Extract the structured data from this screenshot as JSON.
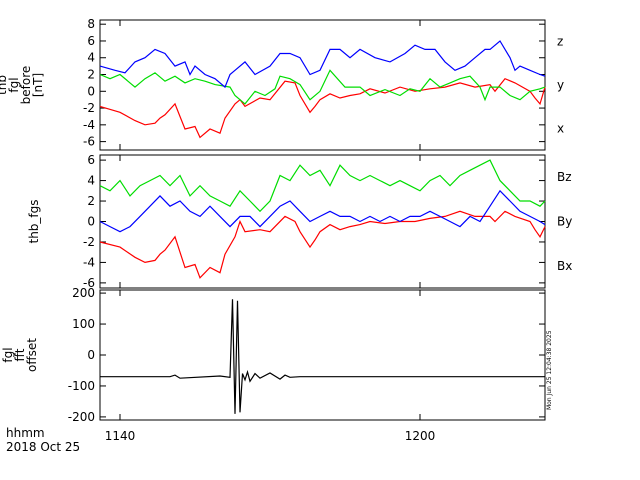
{
  "chart_data": [
    {
      "type": "line",
      "ylabel_lines": [
        "thb",
        "fgl",
        "before",
        "[nT]"
      ],
      "ylim": [
        -7,
        8.5
      ],
      "yticks": [
        -6,
        -4,
        -2,
        0,
        2,
        4,
        6,
        8
      ],
      "xlim": [
        1136,
        1225
      ],
      "legend": "right",
      "series": [
        {
          "name": "z",
          "color": "#ff0000",
          "x": [
            1136,
            1140,
            1143,
            1145,
            1147,
            1148,
            1149,
            1151,
            1152,
            1153,
            1155,
            1156,
            1158,
            1160,
            1161,
            1163,
            1164,
            1165,
            1168,
            1170,
            1173,
            1175,
            1176,
            1178,
            1179,
            1180,
            1182,
            1184,
            1186,
            1188,
            1190,
            1193,
            1196,
            1199,
            1202,
            1205,
            1208,
            1211,
            1214,
            1215,
            1217,
            1219,
            1222,
            1223,
            1224,
            1225
          ],
          "values": [
            -1.8,
            -2.5,
            -3.5,
            -4,
            -3.8,
            -3.2,
            -2.8,
            -1.5,
            -3,
            -4.5,
            -4.2,
            -5.5,
            -4.5,
            -5,
            -3.2,
            -1.5,
            -1,
            -1.8,
            -0.8,
            -1,
            1.2,
            1,
            -0.5,
            -2.5,
            -1.8,
            -1,
            -0.3,
            -0.8,
            -0.5,
            -0.3,
            0.3,
            -0.2,
            0.5,
            0,
            0.3,
            0.5,
            1,
            0.5,
            0.8,
            0,
            1.5,
            1,
            0,
            -0.8,
            -1.5,
            0.5
          ]
        },
        {
          "name": "y",
          "color": "#00dd00",
          "x": [
            1136,
            1138,
            1140,
            1142,
            1143,
            1145,
            1147,
            1149,
            1151,
            1153,
            1155,
            1157,
            1159,
            1162,
            1163,
            1165,
            1167,
            1169,
            1171,
            1172,
            1174,
            1176,
            1178,
            1180,
            1182,
            1185,
            1188,
            1190,
            1193,
            1196,
            1198,
            1200,
            1202,
            1204,
            1206,
            1208,
            1210,
            1212,
            1213,
            1214,
            1216,
            1218,
            1220,
            1222,
            1224,
            1225
          ],
          "values": [
            2,
            1.5,
            2,
            1,
            0.5,
            1.5,
            2.2,
            1.2,
            1.8,
            1,
            1.5,
            1.2,
            0.8,
            0.5,
            -0.5,
            -1.5,
            0,
            -0.5,
            0.3,
            1.8,
            1.5,
            0.8,
            -1,
            0,
            2.5,
            0.5,
            0.5,
            -0.5,
            0.2,
            -0.5,
            0.3,
            0,
            1.5,
            0.5,
            1,
            1.5,
            1.8,
            0.5,
            -1,
            0.5,
            0.5,
            -0.5,
            -1,
            0,
            0.3,
            0.5
          ]
        },
        {
          "name": "x",
          "color": "#0000ff",
          "x": [
            1136,
            1139,
            1141,
            1143,
            1145,
            1147,
            1149,
            1151,
            1153,
            1154,
            1155,
            1157,
            1159,
            1161,
            1162,
            1163,
            1165,
            1167,
            1170,
            1172,
            1174,
            1176,
            1178,
            1180,
            1182,
            1184,
            1186,
            1188,
            1191,
            1194,
            1197,
            1199,
            1201,
            1203,
            1205,
            1207,
            1209,
            1211,
            1213,
            1214,
            1216,
            1218,
            1219,
            1220,
            1222,
            1224,
            1225
          ],
          "values": [
            3,
            2.5,
            2.2,
            3.5,
            4,
            5,
            4.5,
            3,
            3.5,
            2,
            3,
            2,
            1.5,
            0.5,
            2,
            2.5,
            3.5,
            2,
            3,
            4.5,
            4.5,
            4,
            2,
            2.5,
            5,
            5,
            4,
            5,
            4,
            3.5,
            4.5,
            5.5,
            5,
            5,
            3.5,
            2.5,
            3,
            4,
            5,
            5,
            6,
            4,
            2.5,
            3,
            2.5,
            2,
            1.8
          ]
        }
      ]
    },
    {
      "type": "line",
      "ylabel_lines": [
        "thb_fgs"
      ],
      "ylim": [
        -6.5,
        6.5
      ],
      "yticks": [
        -6,
        -4,
        -2,
        0,
        2,
        4,
        6
      ],
      "xlim": [
        1136,
        1225
      ],
      "legend": "right",
      "series": [
        {
          "name": "Bz",
          "color": "#ff0000",
          "x": [
            1136,
            1140,
            1143,
            1145,
            1147,
            1148,
            1149,
            1151,
            1152,
            1153,
            1155,
            1156,
            1158,
            1160,
            1161,
            1163,
            1164,
            1165,
            1168,
            1170,
            1173,
            1175,
            1176,
            1178,
            1179,
            1180,
            1182,
            1184,
            1186,
            1188,
            1190,
            1193,
            1196,
            1199,
            1202,
            1205,
            1208,
            1211,
            1214,
            1215,
            1217,
            1219,
            1222,
            1223,
            1224,
            1225
          ],
          "values": [
            -2,
            -2.5,
            -3.5,
            -4,
            -3.8,
            -3.2,
            -2.8,
            -1.5,
            -3,
            -4.5,
            -4.2,
            -5.5,
            -4.5,
            -5,
            -3.2,
            -1.5,
            0,
            -1,
            -0.8,
            -1,
            0.5,
            0,
            -1,
            -2.5,
            -1.8,
            -1,
            -0.3,
            -0.8,
            -0.5,
            -0.3,
            0,
            -0.2,
            0,
            0,
            0.3,
            0.5,
            1,
            0.5,
            0.5,
            0,
            1,
            0.5,
            0,
            -0.8,
            -1.5,
            -0.5
          ]
        },
        {
          "name": "By",
          "color": "#00dd00",
          "x": [
            1136,
            1138,
            1140,
            1142,
            1144,
            1146,
            1148,
            1150,
            1152,
            1154,
            1156,
            1158,
            1160,
            1162,
            1164,
            1166,
            1168,
            1170,
            1172,
            1174,
            1176,
            1178,
            1180,
            1182,
            1184,
            1186,
            1188,
            1190,
            1192,
            1194,
            1196,
            1198,
            1200,
            1202,
            1204,
            1206,
            1208,
            1210,
            1212,
            1214,
            1216,
            1218,
            1220,
            1222,
            1224,
            1225
          ],
          "values": [
            3.5,
            3,
            4,
            2.5,
            3.5,
            4,
            4.5,
            3.5,
            4.5,
            2.5,
            3.5,
            2.5,
            2,
            1.5,
            3,
            2,
            1,
            2,
            4.5,
            4,
            5.5,
            4.5,
            5,
            3.5,
            5.5,
            4.5,
            4,
            4.5,
            4,
            3.5,
            4,
            3.5,
            3,
            4,
            4.5,
            3.5,
            4.5,
            5,
            5.5,
            6,
            4,
            3,
            2,
            2,
            1.5,
            2
          ]
        },
        {
          "name": "Bx",
          "color": "#0000ff",
          "x": [
            1136,
            1138,
            1140,
            1142,
            1144,
            1146,
            1148,
            1150,
            1152,
            1154,
            1156,
            1158,
            1160,
            1162,
            1164,
            1166,
            1168,
            1170,
            1172,
            1174,
            1176,
            1178,
            1180,
            1182,
            1184,
            1186,
            1188,
            1190,
            1192,
            1194,
            1196,
            1198,
            1200,
            1202,
            1204,
            1206,
            1208,
            1210,
            1212,
            1214,
            1216,
            1218,
            1220,
            1222,
            1224,
            1225
          ],
          "values": [
            0,
            -0.5,
            -1,
            -0.5,
            0.5,
            1.5,
            2.5,
            1.5,
            2,
            1,
            0.5,
            1.5,
            0.5,
            -0.5,
            0.5,
            0.5,
            -0.5,
            0.5,
            1.5,
            2,
            1,
            0,
            0.5,
            1,
            0.5,
            0.5,
            0,
            0.5,
            0,
            0.5,
            0,
            0.5,
            0.5,
            1,
            0.5,
            0,
            -0.5,
            0.5,
            0,
            1.5,
            3,
            2,
            1,
            0.5,
            0,
            -0.3
          ]
        }
      ]
    },
    {
      "type": "line",
      "ylabel_lines": [
        "fgl",
        "fft",
        "offset"
      ],
      "ylim": [
        -210,
        210
      ],
      "yticks": [
        -200,
        -100,
        0,
        100,
        200
      ],
      "xlim": [
        1136,
        1225
      ],
      "series": [
        {
          "color": "#000000",
          "x": [
            1136,
            1150,
            1151,
            1152,
            1160,
            1162,
            1162.5,
            1163,
            1163.5,
            1164,
            1164.5,
            1165,
            1165.5,
            1166,
            1167,
            1168,
            1170,
            1172,
            1173,
            1174,
            1176,
            1180,
            1200,
            1220,
            1225
          ],
          "values": [
            -70,
            -70,
            -65,
            -75,
            -68,
            -72,
            180,
            -190,
            175,
            -185,
            -60,
            -80,
            -55,
            -85,
            -60,
            -75,
            -58,
            -78,
            -65,
            -72,
            -70,
            -70,
            -70,
            -70,
            -70
          ]
        }
      ]
    }
  ],
  "xaxis": {
    "xlim": [
      1136,
      1225
    ],
    "tick_values": [
      1140,
      1200
    ],
    "tick_labels": [
      "1140",
      "1200"
    ],
    "label": "hhmm",
    "date": "2018 Oct 25"
  },
  "timestamp": "Mon Jun 25 12:04:38 2025"
}
